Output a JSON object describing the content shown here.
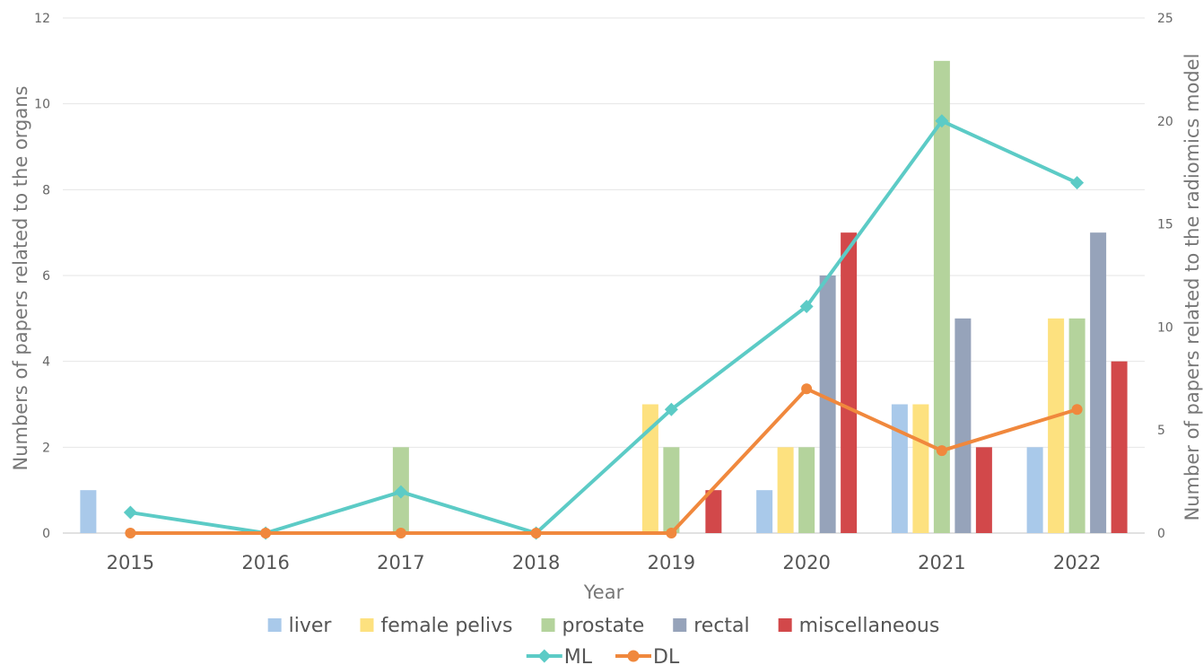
{
  "chart_data": {
    "type": "bar",
    "categories": [
      "2015",
      "2016",
      "2017",
      "2018",
      "2019",
      "2020",
      "2021",
      "2022"
    ],
    "xlabel": "Year",
    "ylabel": "Numbers of papers related to the organs",
    "y2label": "Number of papers related to the radiomics model",
    "ylim": [
      0,
      12
    ],
    "y2lim": [
      0,
      25
    ],
    "yticks": [
      0,
      2,
      4,
      6,
      8,
      10,
      12
    ],
    "y2ticks": [
      0,
      5,
      10,
      15,
      20,
      25
    ],
    "grid": true,
    "legend_position": "bottom",
    "series": [
      {
        "name": "liver",
        "type": "bar",
        "axis": "left",
        "color": "#a9c9ea",
        "values": [
          1,
          0,
          0,
          0,
          0,
          1,
          3,
          2
        ]
      },
      {
        "name": "female pelivs",
        "type": "bar",
        "axis": "left",
        "color": "#fde17f",
        "values": [
          0,
          0,
          0,
          0,
          3,
          2,
          3,
          5
        ]
      },
      {
        "name": "prostate",
        "type": "bar",
        "axis": "left",
        "color": "#b4d39c",
        "values": [
          0,
          0,
          2,
          0,
          2,
          2,
          11,
          5
        ]
      },
      {
        "name": "rectal",
        "type": "bar",
        "axis": "left",
        "color": "#96a3ba",
        "values": [
          0,
          0,
          0,
          0,
          0,
          6,
          5,
          7
        ]
      },
      {
        "name": "miscellaneous",
        "type": "bar",
        "axis": "left",
        "color": "#d2484a",
        "values": [
          0,
          0,
          0,
          0,
          1,
          7,
          2,
          4
        ]
      },
      {
        "name": "ML",
        "type": "line",
        "axis": "right",
        "marker": "diamond",
        "color": "#5ccbc6",
        "values": [
          1,
          0,
          2,
          0,
          6,
          11,
          20,
          17
        ]
      },
      {
        "name": "DL",
        "type": "line",
        "axis": "right",
        "marker": "circle",
        "color": "#f0883d",
        "values": [
          0,
          0,
          0,
          0,
          0,
          7,
          4,
          6
        ]
      }
    ]
  }
}
